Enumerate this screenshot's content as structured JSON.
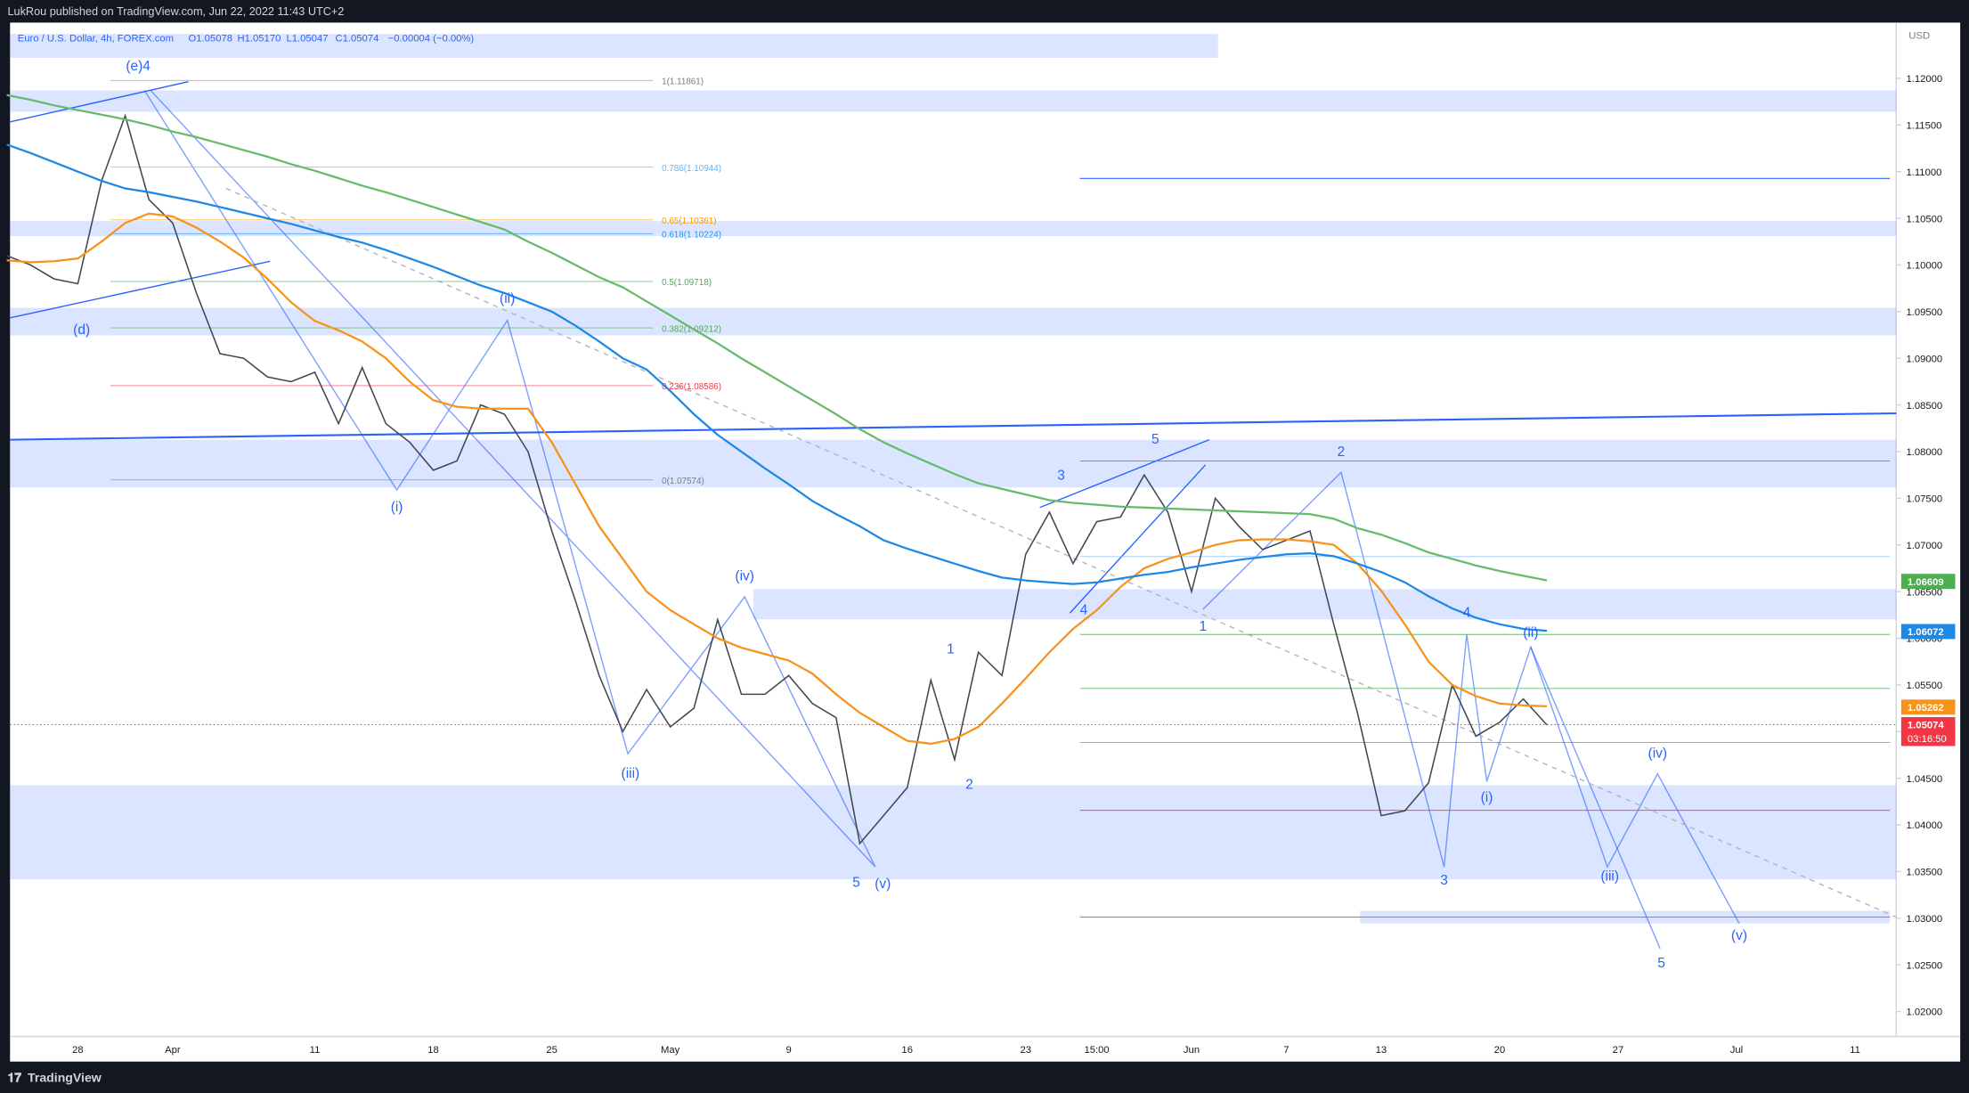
{
  "header": {
    "publisher": "LukRou published on TradingView.com, Jun 22, 2022 11:43 UTC+2",
    "brand": "TradingView"
  },
  "chart_data": {
    "type": "line",
    "symbol": "Euro / U.S. Dollar, 4h, FOREX.com",
    "ohlc": [
      "O1.05078",
      "H1.05170",
      "L1.05047",
      "C1.05074",
      "−0.00004 (−0.00%)"
    ],
    "currency": "USD",
    "categories": [
      null,
      null,
      null,
      "28",
      null,
      null,
      null,
      "Apr",
      null,
      null,
      null,
      null,
      null,
      "11",
      null,
      null,
      null,
      null,
      "18",
      null,
      null,
      null,
      null,
      "25",
      null,
      null,
      null,
      null,
      "May",
      null,
      null,
      null,
      null,
      "9",
      null,
      null,
      null,
      null,
      "16",
      null,
      null,
      null,
      null,
      "23",
      null,
      null,
      "15:00",
      null,
      null,
      null,
      "Jun",
      null,
      null,
      null,
      "7",
      null,
      null,
      null,
      "13",
      null,
      null,
      null,
      null,
      "20",
      null,
      null,
      null,
      null,
      "27",
      null,
      null,
      null,
      null,
      "Jul",
      null,
      null,
      null,
      null,
      "11",
      null,
      null
    ],
    "series": [
      {
        "color": "#434651",
        "values": [
          1.101,
          1.1,
          1.0985,
          1.098,
          1.109,
          1.116,
          1.107,
          1.1045,
          1.097,
          1.0905,
          1.09,
          1.088,
          1.0875,
          1.0885,
          1.083,
          1.089,
          1.083,
          1.081,
          1.078,
          1.079,
          1.085,
          1.084,
          1.08,
          1.0715,
          1.064,
          1.056,
          1.05,
          1.0545,
          1.0505,
          1.0525,
          1.062,
          1.054,
          1.054,
          1.056,
          1.053,
          1.0515,
          1.038,
          1.041,
          1.044,
          1.0555,
          1.047,
          1.0585,
          1.056,
          1.069,
          1.0735,
          1.068,
          1.0725,
          1.073,
          1.0775,
          1.0735,
          1.065,
          1.075,
          1.072,
          1.0695,
          1.0705,
          1.0715,
          1.0615,
          1.052,
          1.041,
          1.0415,
          1.0445,
          1.055,
          1.0495,
          1.051,
          1.0535,
          1.0507,
          null,
          null,
          null,
          null,
          null,
          null,
          null,
          null,
          null,
          null,
          null,
          null,
          null,
          null,
          null
        ]
      },
      {
        "color": "#f7931a",
        "values": [
          1.1005,
          1.1003,
          1.1004,
          1.1007,
          1.1025,
          1.1045,
          1.1055,
          1.1052,
          1.104,
          1.1025,
          1.1008,
          1.0985,
          1.096,
          1.094,
          1.093,
          1.0918,
          1.09,
          1.0875,
          1.0855,
          1.0848,
          1.0846,
          1.0846,
          1.0846,
          1.081,
          1.0765,
          1.072,
          1.0685,
          1.065,
          1.063,
          1.0615,
          1.06,
          1.059,
          1.0583,
          1.0576,
          1.0562,
          1.054,
          1.052,
          1.0505,
          1.049,
          1.0487,
          1.0492,
          1.0505,
          1.053,
          1.0557,
          1.0585,
          1.061,
          1.063,
          1.0655,
          1.0675,
          1.0685,
          1.0692,
          1.07,
          1.0705,
          1.0706,
          1.0706,
          1.0704,
          1.07,
          1.068,
          1.0651,
          1.0615,
          1.0575,
          1.055,
          1.0538,
          1.053,
          1.0528,
          1.0527,
          null,
          null,
          null,
          null,
          null,
          null,
          null,
          null,
          null,
          null,
          null,
          null,
          null,
          null,
          null
        ]
      },
      {
        "color": "#1e88e5",
        "values": [
          1.1129,
          1.112,
          1.111,
          1.11,
          1.109,
          1.1082,
          1.1078,
          1.1073,
          1.1068,
          1.1062,
          1.1056,
          1.105,
          1.1044,
          1.1037,
          1.103,
          1.1024,
          1.1016,
          1.1007,
          1.0998,
          1.0988,
          1.0978,
          1.097,
          1.096,
          1.095,
          1.0935,
          1.0918,
          1.09,
          1.0888,
          1.0865,
          1.084,
          1.0818,
          1.08,
          1.0782,
          1.0765,
          1.0747,
          1.0733,
          1.072,
          1.0705,
          1.0696,
          1.0688,
          1.068,
          1.0672,
          1.0665,
          1.0662,
          1.066,
          1.0658,
          1.066,
          1.0664,
          1.0668,
          1.0671,
          1.0676,
          1.068,
          1.0684,
          1.0687,
          1.069,
          1.0691,
          1.0688,
          1.068,
          1.0671,
          1.066,
          1.0645,
          1.0632,
          1.0622,
          1.0615,
          1.061,
          1.0608,
          null,
          null,
          null,
          null,
          null,
          null,
          null,
          null,
          null,
          null,
          null,
          null,
          null,
          null,
          null
        ]
      },
      {
        "color": "#66bb6a",
        "values": [
          1.1182,
          1.1177,
          1.1171,
          1.1166,
          1.1161,
          1.1156,
          1.115,
          1.1143,
          1.1137,
          1.113,
          1.1123,
          1.1116,
          1.1108,
          1.1101,
          1.1093,
          1.1085,
          1.1078,
          1.107,
          1.1062,
          1.1054,
          1.1046,
          1.1038,
          1.1025,
          1.1013,
          1.1,
          1.0987,
          1.0976,
          1.0961,
          1.0946,
          1.0931,
          1.0916,
          1.09,
          1.0885,
          1.087,
          1.0855,
          1.084,
          1.0824,
          1.081,
          1.0798,
          1.0787,
          1.0776,
          1.0766,
          1.076,
          1.0754,
          1.0748,
          1.0745,
          1.0743,
          1.0741,
          1.074,
          1.0739,
          1.0738,
          1.0737,
          1.0736,
          1.0735,
          1.0734,
          1.0733,
          1.0728,
          1.0718,
          1.0711,
          1.0702,
          1.0692,
          1.0685,
          1.0678,
          1.0672,
          1.0667,
          1.0662,
          null,
          null,
          null,
          null,
          null,
          null,
          null,
          null,
          null,
          null,
          null,
          null,
          null,
          null,
          null
        ]
      }
    ],
    "ylim": [
      1.018,
      1.1257
    ],
    "yticks": [
      {
        "value": 1.02,
        "label": "1.02000"
      },
      {
        "value": 1.025,
        "label": "1.02500"
      },
      {
        "value": 1.03,
        "label": "1.03000"
      },
      {
        "value": 1.035,
        "label": "1.03500"
      },
      {
        "value": 1.04,
        "label": "1.04000"
      },
      {
        "value": 1.045,
        "label": "1.04500"
      },
      {
        "value": 1.05,
        "label": "1.05000"
      },
      {
        "value": 1.055,
        "label": "1.05500"
      },
      {
        "value": 1.06,
        "label": "1.06000"
      },
      {
        "value": 1.065,
        "label": "1.06500"
      },
      {
        "value": 1.07,
        "label": "1.07000"
      },
      {
        "value": 1.075,
        "label": "1.07500"
      },
      {
        "value": 1.08,
        "label": "1.08000"
      },
      {
        "value": 1.085,
        "label": "1.08500"
      },
      {
        "value": 1.09,
        "label": "1.09000"
      },
      {
        "value": 1.095,
        "label": "1.09500"
      },
      {
        "value": 1.1,
        "label": "1.10000"
      },
      {
        "value": 1.105,
        "label": "1.10500"
      },
      {
        "value": 1.11,
        "label": "1.11000"
      },
      {
        "value": 1.115,
        "label": "1.11500"
      },
      {
        "value": 1.12,
        "label": "1.12000"
      }
    ],
    "price_tags": [
      {
        "value": 1.06609,
        "color": "#4caf50"
      },
      {
        "value": 1.06072,
        "color": "#1e88e5"
      },
      {
        "value": 1.05262,
        "color": "#f7931a"
      },
      {
        "value": 1.05074,
        "color": "#f23645",
        "countdown": "03:16:50"
      }
    ],
    "fib_levels": [
      "1(1.11861)",
      "0.786(1.10944)",
      "0.65(1.10361)",
      "0.618(1.10224)",
      "0.5(1.09718)",
      "0.382(1.09212)",
      "0.236(1.08586)",
      "0(1.07574)"
    ],
    "annotations": [
      "(e)4",
      "(d)",
      "(ii)",
      "(i)",
      "(iii)",
      "(iv)",
      "5",
      "(v)",
      "1",
      "2",
      "3",
      "4",
      "5",
      "1",
      "2",
      "4",
      "(ii)",
      "(i)",
      "3",
      "(iii)",
      "(iv)",
      "5",
      "(v)"
    ]
  }
}
